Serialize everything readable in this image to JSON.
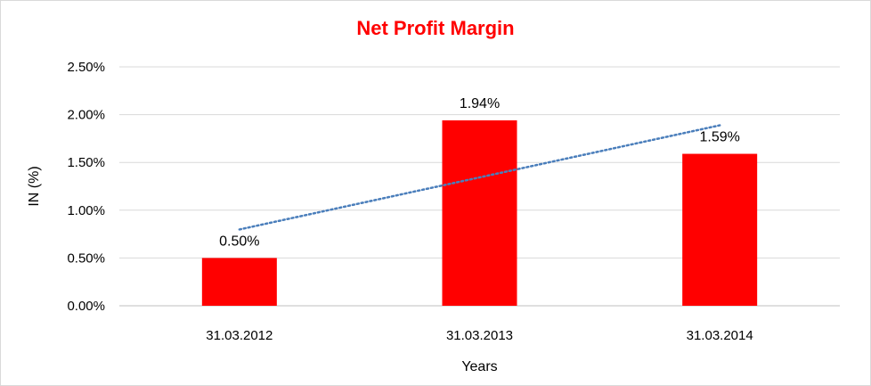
{
  "chart_data": {
    "type": "bar",
    "title": "Net Profit Margin",
    "xlabel": "Years",
    "ylabel": "IN (%)",
    "categories": [
      "31.03.2012",
      "31.03.2013",
      "31.03.2014"
    ],
    "values": [
      0.5,
      1.94,
      1.59
    ],
    "data_labels": [
      "0.50%",
      "1.94%",
      "1.59%"
    ],
    "ylim": [
      0,
      2.5
    ],
    "yticks": [
      0,
      0.5,
      1.0,
      1.5,
      2.0,
      2.5
    ],
    "ytick_labels": [
      "0.00%",
      "0.50%",
      "1.00%",
      "1.50%",
      "2.00%",
      "2.50%"
    ],
    "grid": true,
    "legend": "none",
    "trendline": {
      "type": "linear",
      "style": "dotted",
      "color": "#4a7ebb"
    },
    "bar_color": "#ff0000",
    "title_color": "#ff0000"
  }
}
